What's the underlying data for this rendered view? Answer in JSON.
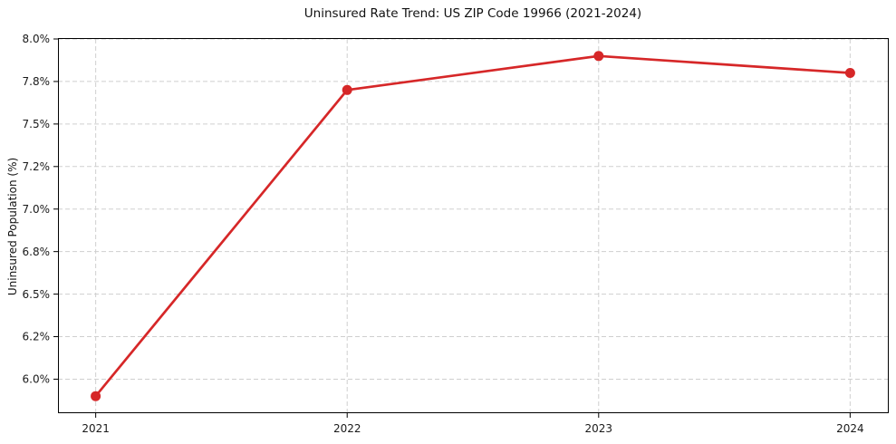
{
  "chart_data": {
    "type": "line",
    "title": "Uninsured Rate Trend: US ZIP Code 19966 (2021-2024)",
    "xlabel": "",
    "ylabel": "Uninsured Population (%)",
    "x": [
      2021,
      2022,
      2023,
      2024
    ],
    "x_tick_labels": [
      "2021",
      "2022",
      "2023",
      "2024"
    ],
    "series": [
      {
        "name": "Uninsured Rate",
        "values": [
          5.9,
          7.7,
          7.9,
          7.8
        ]
      }
    ],
    "y_ticks": [
      6.0,
      6.25,
      6.5,
      6.75,
      7.0,
      7.25,
      7.5,
      7.75,
      8.0
    ],
    "y_tick_labels": [
      "6.0%",
      "6.2%",
      "6.5%",
      "6.8%",
      "7.0%",
      "7.2%",
      "7.5%",
      "7.8%",
      "8.0%"
    ],
    "xlim": [
      2020.85,
      2024.15
    ],
    "ylim": [
      5.8,
      8.0
    ],
    "grid": true,
    "grid_style": "dashed",
    "legend": "none",
    "marker": "circle",
    "colors": {
      "line": "#d62728",
      "marker": "#d62728",
      "grid": "#cfcfcf",
      "axis": "#000000",
      "tick_text": "#1a1a1a",
      "background": "#ffffff"
    }
  }
}
